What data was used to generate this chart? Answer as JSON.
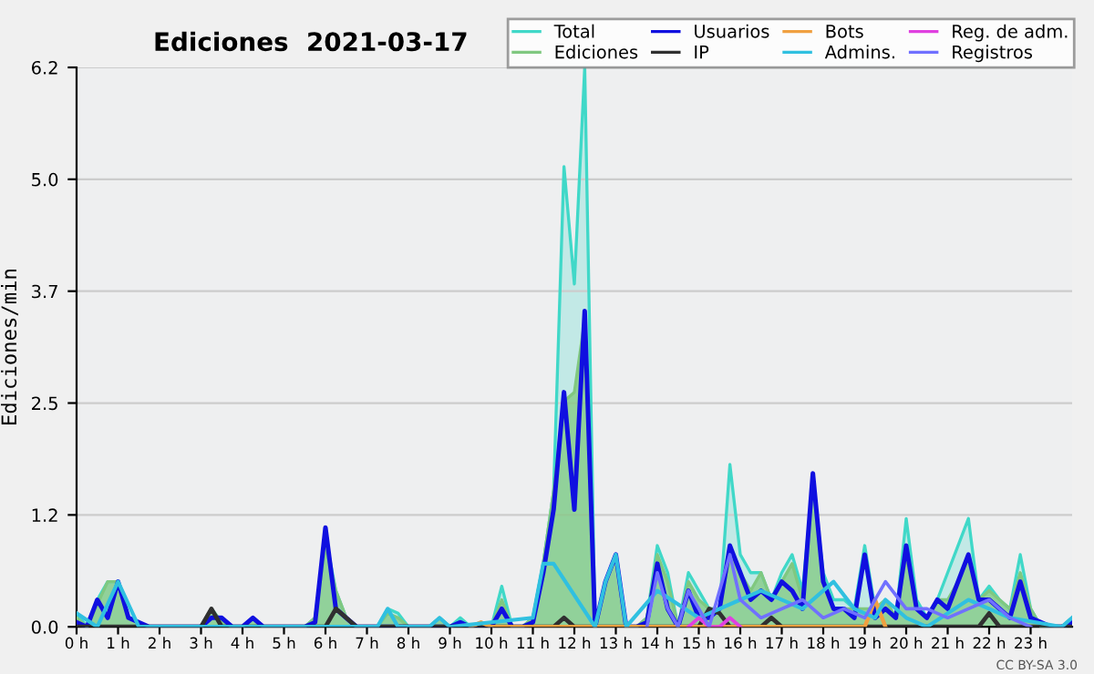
{
  "chart_data": {
    "type": "area",
    "title": "Ediciones  2021-03-17",
    "ylabel": "Ediciones/min",
    "annotations": [
      "CC BY-SA 3.0"
    ],
    "x": [
      0,
      0.25,
      0.5,
      0.75,
      1,
      1.25,
      1.5,
      1.75,
      2,
      2.25,
      2.5,
      2.75,
      3,
      3.25,
      3.5,
      3.75,
      4,
      4.25,
      4.5,
      4.75,
      5,
      5.25,
      5.5,
      5.75,
      6,
      6.25,
      6.5,
      6.75,
      7,
      7.25,
      7.5,
      7.75,
      8,
      8.25,
      8.5,
      8.75,
      9,
      9.25,
      9.5,
      9.75,
      10,
      10.25,
      10.5,
      10.75,
      11,
      11.25,
      11.5,
      11.75,
      12,
      12.25,
      12.5,
      12.75,
      13,
      13.25,
      13.5,
      13.75,
      14,
      14.25,
      14.5,
      14.75,
      15,
      15.25,
      15.5,
      15.75,
      16,
      16.25,
      16.5,
      16.75,
      17,
      17.25,
      17.5,
      17.75,
      18,
      18.25,
      18.5,
      18.75,
      19,
      19.25,
      19.5,
      19.75,
      20,
      20.25,
      20.5,
      20.75,
      21,
      21.25,
      21.5,
      21.75,
      22,
      22.25,
      22.5,
      22.75,
      23,
      23.25,
      23.5,
      23.75,
      24
    ],
    "series": [
      {
        "name": "Total",
        "color": "#40d8c8",
        "values": [
          0.15,
          0,
          0.3,
          0.5,
          0.5,
          0.1,
          0.05,
          0,
          0,
          0,
          0,
          0,
          0,
          0.2,
          0.05,
          0,
          0,
          0.1,
          0,
          0,
          0,
          0,
          0,
          0.1,
          1.0,
          0.4,
          0.1,
          0,
          0,
          0,
          0.2,
          0.15,
          0,
          0,
          0,
          0.1,
          0,
          0.1,
          0,
          0.05,
          0,
          0.45,
          0,
          0,
          0.1,
          0.7,
          1.5,
          5.1,
          3.8,
          6.2,
          0,
          0.5,
          0.8,
          0,
          0,
          0.1,
          0.9,
          0.6,
          0,
          0.6,
          0.4,
          0.2,
          0.2,
          1.8,
          0.8,
          0.6,
          0.6,
          0.3,
          0.6,
          0.8,
          0.4,
          1.6,
          0.6,
          0.3,
          0.3,
          0.2,
          0.9,
          0.2,
          0.3,
          0.1,
          1.2,
          0.3,
          0.1,
          0.3,
          0.6,
          0.9,
          1.2,
          0.3,
          0.45,
          0.3,
          0.2,
          0.8,
          0.2,
          0,
          0,
          0,
          0.1
        ]
      },
      {
        "name": "Ediciones",
        "color": "#80c880",
        "values": [
          0.1,
          0,
          0.25,
          0.5,
          0.5,
          0.1,
          0.05,
          0,
          0,
          0,
          0,
          0,
          0,
          0.2,
          0.05,
          0,
          0,
          0.1,
          0,
          0,
          0,
          0,
          0,
          0.1,
          0.9,
          0.4,
          0.1,
          0,
          0,
          0,
          0.15,
          0.1,
          0,
          0,
          0,
          0.1,
          0,
          0.05,
          0,
          0.05,
          0,
          0.3,
          0,
          0,
          0.1,
          0.7,
          1.5,
          2.5,
          2.6,
          3.4,
          0,
          0.5,
          0.8,
          0,
          0,
          0.1,
          0.8,
          0.5,
          0,
          0.5,
          0.3,
          0.2,
          0.2,
          0.8,
          0.6,
          0.4,
          0.6,
          0.3,
          0.5,
          0.7,
          0.3,
          1.6,
          0.5,
          0.2,
          0.2,
          0.2,
          0.2,
          0.2,
          0.3,
          0.1,
          0.8,
          0.2,
          0.1,
          0.3,
          0.3,
          0.5,
          0.8,
          0.3,
          0.4,
          0.3,
          0.2,
          0.6,
          0.2,
          0,
          0,
          0,
          0.1
        ]
      },
      {
        "name": "Usuarios",
        "type": "line",
        "color": "#1010e0",
        "values": [
          0.05,
          0,
          0.3,
          0.1,
          0.5,
          0.1,
          0.05,
          0,
          0,
          0,
          0,
          0,
          0,
          0.1,
          0.1,
          0,
          0,
          0.1,
          0,
          0,
          0,
          0,
          0,
          0.05,
          1.1,
          0.2,
          0.1,
          0,
          0,
          0,
          0,
          0,
          0,
          0,
          0,
          0,
          0,
          0.05,
          0,
          0,
          0,
          0.2,
          0,
          0,
          0.05,
          0.6,
          1.3,
          2.6,
          1.3,
          3.5,
          0,
          0.5,
          0.8,
          0,
          0,
          0.05,
          0.7,
          0.2,
          0,
          0.4,
          0.1,
          0.1,
          0.2,
          0.9,
          0.6,
          0.3,
          0.4,
          0.3,
          0.5,
          0.4,
          0.2,
          1.7,
          0.5,
          0.2,
          0.2,
          0.1,
          0.8,
          0.1,
          0.2,
          0.1,
          0.9,
          0.2,
          0.1,
          0.3,
          0.2,
          0.5,
          0.8,
          0.3,
          0.3,
          0.2,
          0.1,
          0.5,
          0.1,
          0.05,
          0,
          0,
          0.05
        ]
      },
      {
        "name": "IP",
        "type": "line",
        "color": "#303030",
        "values": [
          0,
          0,
          0,
          0,
          0,
          0,
          0,
          0,
          0,
          0,
          0,
          0,
          0,
          0.2,
          0,
          0,
          0,
          0,
          0,
          0,
          0,
          0,
          0,
          0,
          0,
          0.2,
          0.1,
          0,
          0,
          0,
          0,
          0,
          0,
          0,
          0,
          0,
          0,
          0,
          0,
          0,
          0,
          0,
          0,
          0,
          0,
          0,
          0,
          0.1,
          0,
          0,
          0,
          0,
          0,
          0,
          0,
          0,
          0,
          0,
          0,
          0,
          0,
          0.2,
          0.15,
          0,
          0,
          0,
          0,
          0.1,
          0,
          0,
          0,
          0,
          0,
          0,
          0,
          0,
          0,
          0,
          0,
          0,
          0,
          0,
          0,
          0,
          0,
          0,
          0,
          0,
          0.15,
          0,
          0,
          0,
          0,
          0,
          0,
          0,
          0
        ]
      },
      {
        "name": "Bots",
        "type": "line",
        "color": "#f0a040",
        "x": [
          9.5,
          9.75,
          10.0,
          19.0,
          19.25,
          19.5
        ],
        "values": [
          0,
          0.05,
          0,
          0,
          0.3,
          0
        ]
      },
      {
        "name": "Admins.",
        "type": "line",
        "color": "#30c0e0",
        "x": [
          0,
          0.5,
          1.0,
          1.5,
          2.0,
          7.25,
          7.5,
          7.75,
          8.5,
          8.75,
          9.0,
          11.0,
          11.25,
          11.5,
          12.5,
          12.75,
          13.0,
          13.25,
          14.0,
          15.0,
          16.0,
          16.5,
          17.5,
          18.25,
          18.75,
          19.25,
          19.5,
          20.0,
          20.5,
          21.5,
          22.5,
          23.75,
          24.0
        ],
        "values": [
          0.15,
          0,
          0.5,
          0,
          0,
          0,
          0.2,
          0,
          0,
          0.1,
          0,
          0.1,
          0.7,
          0.7,
          0,
          0.5,
          0.8,
          0,
          0.4,
          0.1,
          0.3,
          0.4,
          0.2,
          0.5,
          0.2,
          0.1,
          0.3,
          0.1,
          0,
          0.3,
          0.1,
          0,
          0.1
        ]
      },
      {
        "name": "Reg. de adm.",
        "type": "line",
        "color": "#e040e0",
        "x": [
          14.75,
          15.0,
          15.25,
          15.5,
          15.75,
          16.0
        ],
        "values": [
          0,
          0.1,
          0,
          0,
          0.1,
          0
        ]
      },
      {
        "name": "Registros",
        "type": "line",
        "color": "#7070ff",
        "x": [
          13.75,
          14.0,
          14.25,
          14.5,
          14.75,
          15.0,
          15.25,
          15.75,
          16.0,
          16.5,
          17.5,
          18.0,
          18.5,
          19.0,
          19.5,
          20.0,
          20.5,
          21.0,
          21.5,
          22.0,
          22.5,
          23.0
        ],
        "values": [
          0,
          0.6,
          0.2,
          0,
          0.4,
          0.2,
          0,
          0.8,
          0.3,
          0.1,
          0.3,
          0.1,
          0.2,
          0.1,
          0.5,
          0.2,
          0.2,
          0.1,
          0.2,
          0.3,
          0.1,
          0
        ]
      }
    ],
    "xlim": [
      0,
      24
    ],
    "xticks": [
      {
        "value": 0,
        "label": "0 h"
      },
      {
        "value": 1,
        "label": "1 h"
      },
      {
        "value": 2,
        "label": "2 h"
      },
      {
        "value": 3,
        "label": "3 h"
      },
      {
        "value": 4,
        "label": "4 h"
      },
      {
        "value": 5,
        "label": "5 h"
      },
      {
        "value": 6,
        "label": "6 h"
      },
      {
        "value": 7,
        "label": "7 h"
      },
      {
        "value": 8,
        "label": "8 h"
      },
      {
        "value": 9,
        "label": "9 h"
      },
      {
        "value": 10,
        "label": "10 h"
      },
      {
        "value": 11,
        "label": "11 h"
      },
      {
        "value": 12,
        "label": "12 h"
      },
      {
        "value": 13,
        "label": "13 h"
      },
      {
        "value": 14,
        "label": "14 h"
      },
      {
        "value": 15,
        "label": "15 h"
      },
      {
        "value": 16,
        "label": "16 h"
      },
      {
        "value": 17,
        "label": "17 h"
      },
      {
        "value": 18,
        "label": "18 h"
      },
      {
        "value": 19,
        "label": "19 h"
      },
      {
        "value": 20,
        "label": "20 h"
      },
      {
        "value": 21,
        "label": "21 h"
      },
      {
        "value": 22,
        "label": "22 h"
      },
      {
        "value": 23,
        "label": "23 h"
      }
    ],
    "ylim": [
      0,
      6.2
    ],
    "yticks": [
      {
        "value": 0,
        "label": "0.0"
      },
      {
        "value": 1.24,
        "label": "1.2"
      },
      {
        "value": 2.48,
        "label": "2.5"
      },
      {
        "value": 3.72,
        "label": "3.7"
      },
      {
        "value": 4.96,
        "label": "5.0"
      },
      {
        "value": 6.2,
        "label": "6.2"
      }
    ],
    "grid": "y",
    "legend": "top right",
    "marker": "none",
    "line_style": "solid"
  }
}
